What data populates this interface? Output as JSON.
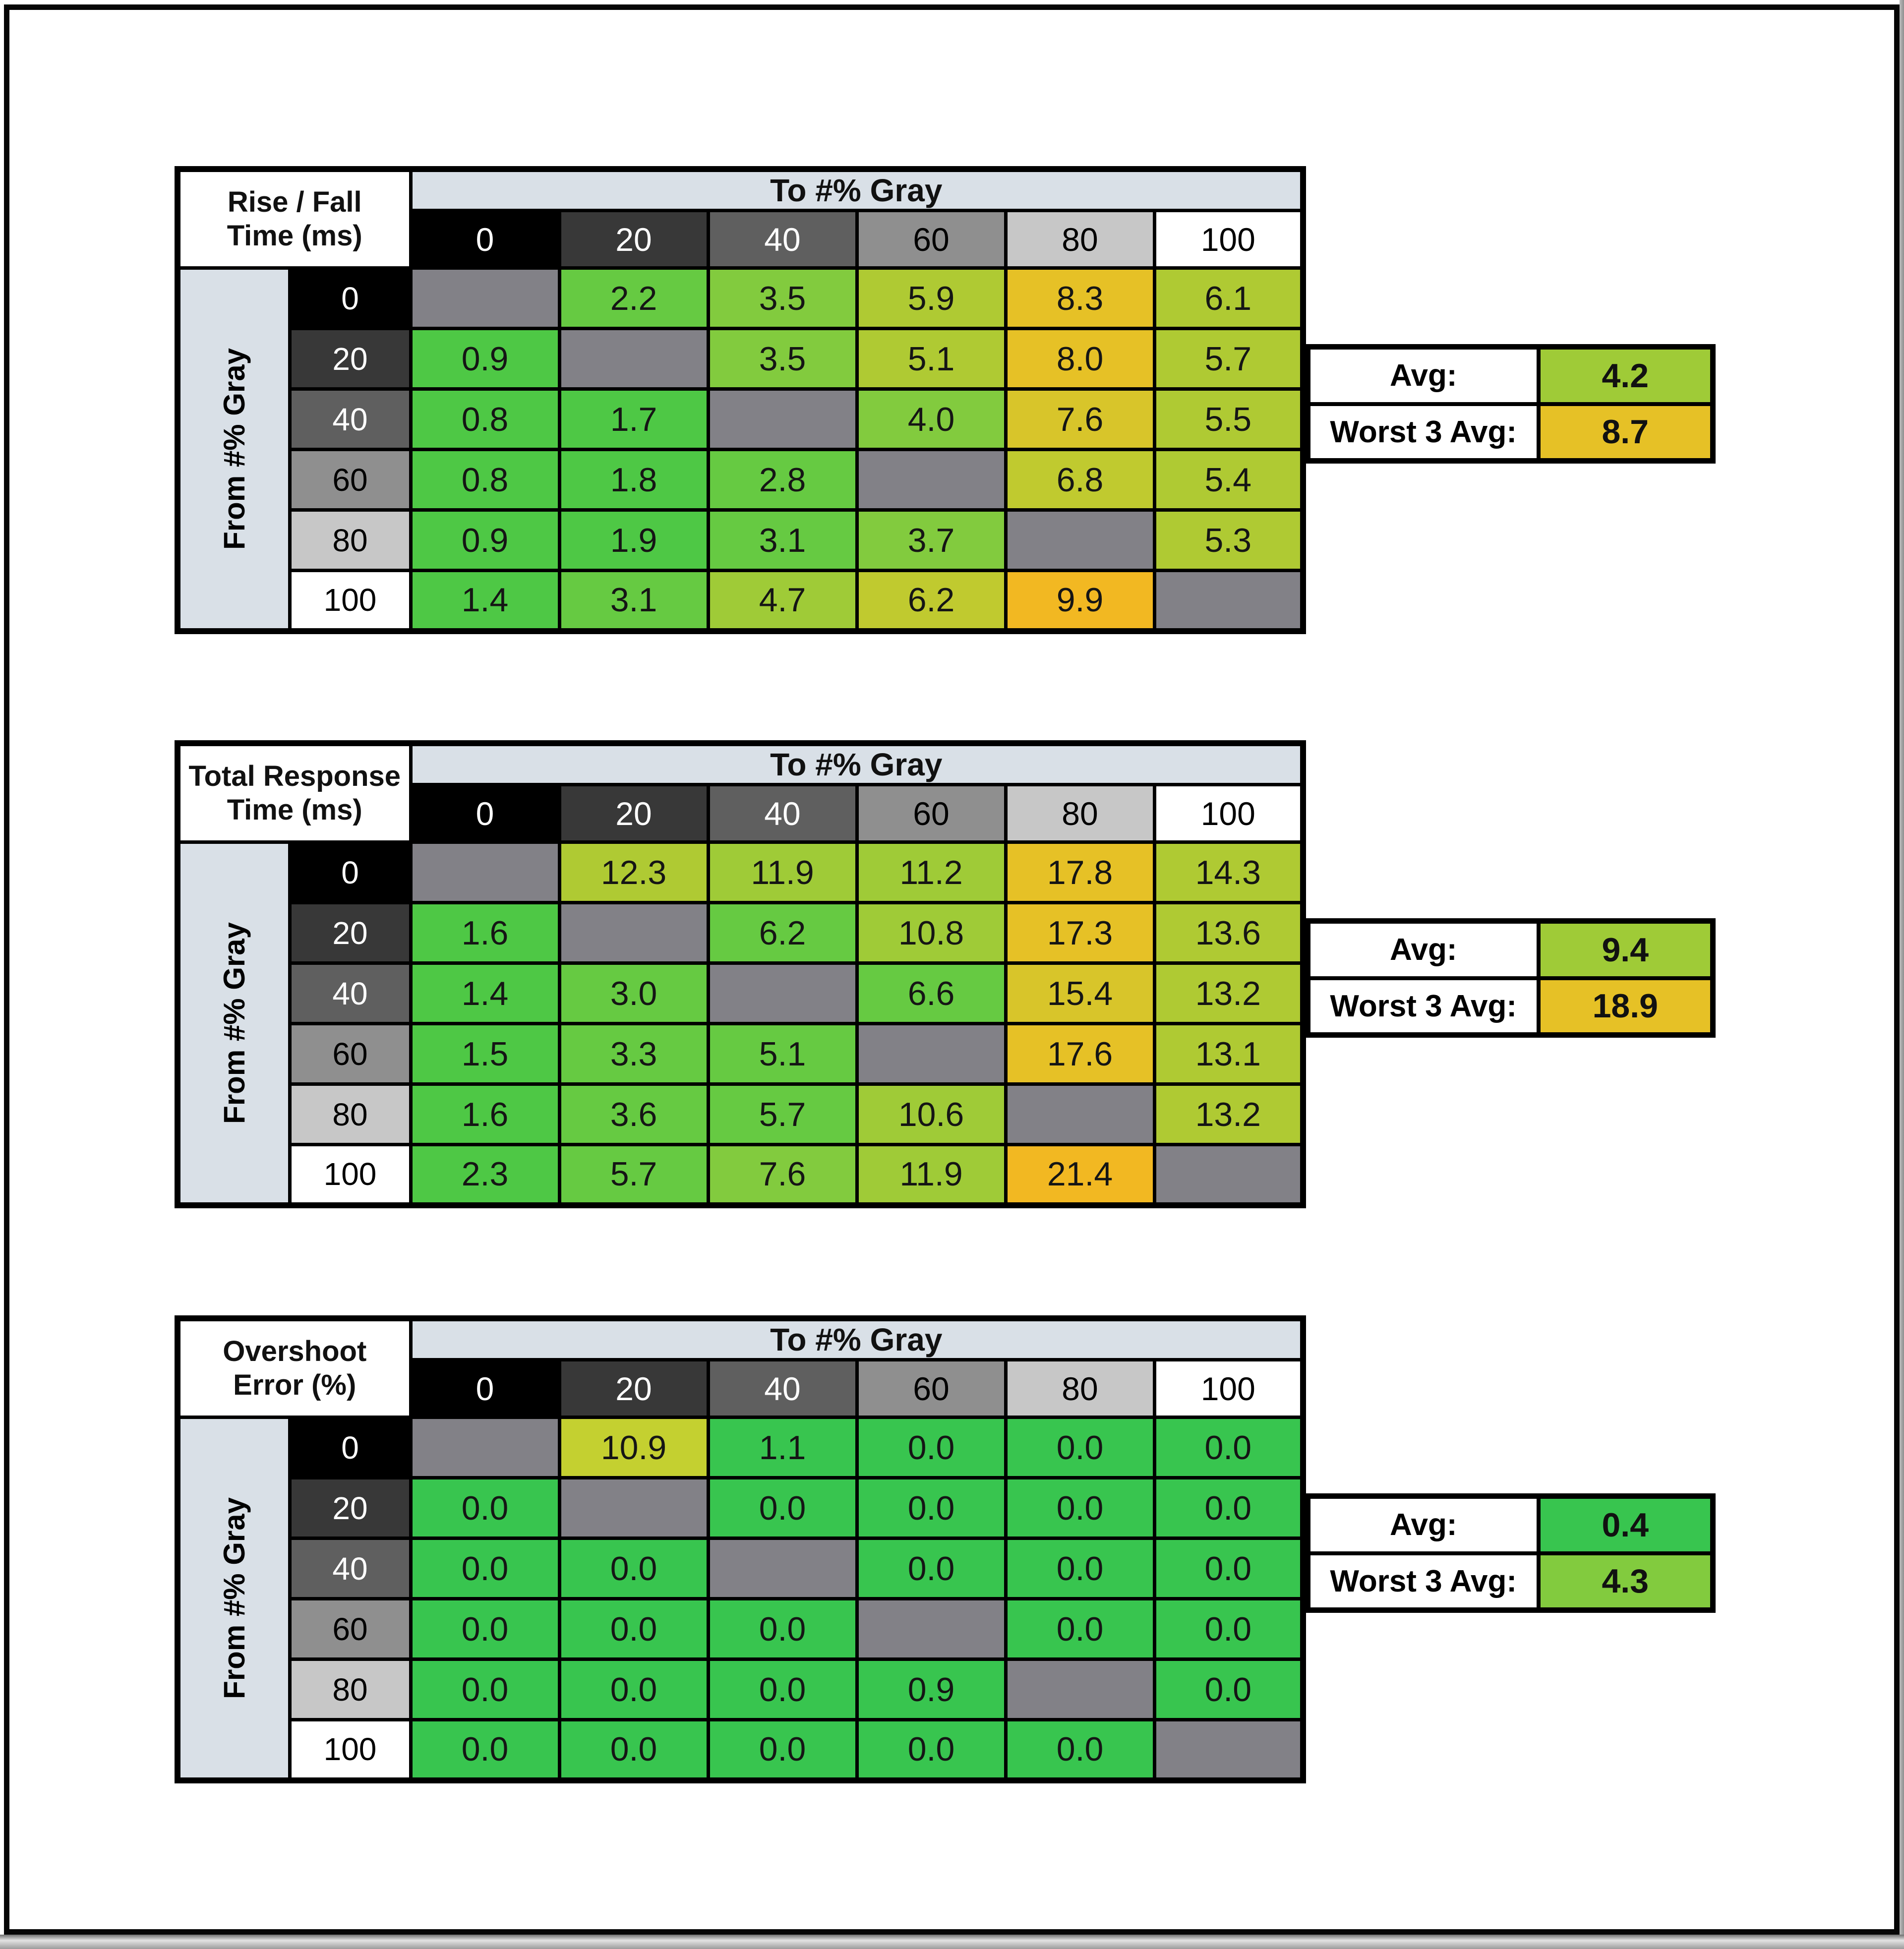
{
  "page_bg": "#FFFFFF",
  "frame_border_color": "#060606",
  "header_bg": "#D9E0E7",
  "col_group_header": "To #% Gray",
  "row_group_header": "From #% Gray",
  "palette": {
    "p0": "#38C54F",
    "p1": "#4EC845",
    "p2": "#66CA42",
    "p3": "#82CB3E",
    "p4": "#9FCB37",
    "p5": "#AFCA33",
    "p6": "#C0CA2F",
    "p6y": "#C4D030",
    "p7": "#D8C52A",
    "p8": "#E6C126",
    "p9": "#F2B822",
    "na": "#828187"
  },
  "levels": [
    {
      "label": "0",
      "bg": "#000000",
      "fg": "#FFFFFF"
    },
    {
      "label": "20",
      "bg": "#383838",
      "fg": "#FFFFFF"
    },
    {
      "label": "40",
      "bg": "#5F5F5F",
      "fg": "#FFFFFF"
    },
    {
      "label": "60",
      "bg": "#8F8F8F",
      "fg": "#000000"
    },
    {
      "label": "80",
      "bg": "#C7C7C7",
      "fg": "#000000"
    },
    {
      "label": "100",
      "bg": "#FFFFFF",
      "fg": "#000000"
    }
  ],
  "tables": [
    {
      "id": "rise-fall-time-table",
      "title_lines": [
        "Rise / Fall",
        "Time (ms)"
      ],
      "rows": [
        {
          "from": "0",
          "cells": [
            null,
            {
              "v": "2.2",
              "c": "p2"
            },
            {
              "v": "3.5",
              "c": "p3"
            },
            {
              "v": "5.9",
              "c": "p5"
            },
            {
              "v": "8.3",
              "c": "p8"
            },
            {
              "v": "6.1",
              "c": "p5"
            }
          ]
        },
        {
          "from": "20",
          "cells": [
            {
              "v": "0.9",
              "c": "p1"
            },
            null,
            {
              "v": "3.5",
              "c": "p3"
            },
            {
              "v": "5.1",
              "c": "p5"
            },
            {
              "v": "8.0",
              "c": "p8"
            },
            {
              "v": "5.7",
              "c": "p5"
            }
          ]
        },
        {
          "from": "40",
          "cells": [
            {
              "v": "0.8",
              "c": "p1"
            },
            {
              "v": "1.7",
              "c": "p1"
            },
            null,
            {
              "v": "4.0",
              "c": "p3"
            },
            {
              "v": "7.6",
              "c": "p7"
            },
            {
              "v": "5.5",
              "c": "p5"
            }
          ]
        },
        {
          "from": "60",
          "cells": [
            {
              "v": "0.8",
              "c": "p1"
            },
            {
              "v": "1.8",
              "c": "p1"
            },
            {
              "v": "2.8",
              "c": "p2"
            },
            null,
            {
              "v": "6.8",
              "c": "p6"
            },
            {
              "v": "5.4",
              "c": "p5"
            }
          ]
        },
        {
          "from": "80",
          "cells": [
            {
              "v": "0.9",
              "c": "p1"
            },
            {
              "v": "1.9",
              "c": "p1"
            },
            {
              "v": "3.1",
              "c": "p2"
            },
            {
              "v": "3.7",
              "c": "p3"
            },
            null,
            {
              "v": "5.3",
              "c": "p5"
            }
          ]
        },
        {
          "from": "100",
          "cells": [
            {
              "v": "1.4",
              "c": "p1"
            },
            {
              "v": "3.1",
              "c": "p2"
            },
            {
              "v": "4.7",
              "c": "p4"
            },
            {
              "v": "6.2",
              "c": "p6"
            },
            {
              "v": "9.9",
              "c": "p9"
            },
            null
          ]
        }
      ],
      "summary": {
        "avg_label": "Avg:",
        "avg_value": "4.2",
        "avg_color": "p4",
        "worst_label": "Worst 3 Avg:",
        "worst_value": "8.7",
        "worst_color": "p8"
      }
    },
    {
      "id": "total-response-time-table",
      "title_lines": [
        "Total Response",
        "Time (ms)"
      ],
      "rows": [
        {
          "from": "0",
          "cells": [
            null,
            {
              "v": "12.3",
              "c": "p5"
            },
            {
              "v": "11.9",
              "c": "p4"
            },
            {
              "v": "11.2",
              "c": "p4"
            },
            {
              "v": "17.8",
              "c": "p8"
            },
            {
              "v": "14.3",
              "c": "p5"
            }
          ]
        },
        {
          "from": "20",
          "cells": [
            {
              "v": "1.6",
              "c": "p1"
            },
            null,
            {
              "v": "6.2",
              "c": "p2"
            },
            {
              "v": "10.8",
              "c": "p4"
            },
            {
              "v": "17.3",
              "c": "p8"
            },
            {
              "v": "13.6",
              "c": "p5"
            }
          ]
        },
        {
          "from": "40",
          "cells": [
            {
              "v": "1.4",
              "c": "p1"
            },
            {
              "v": "3.0",
              "c": "p2"
            },
            null,
            {
              "v": "6.6",
              "c": "p2"
            },
            {
              "v": "15.4",
              "c": "p7"
            },
            {
              "v": "13.2",
              "c": "p5"
            }
          ]
        },
        {
          "from": "60",
          "cells": [
            {
              "v": "1.5",
              "c": "p1"
            },
            {
              "v": "3.3",
              "c": "p2"
            },
            {
              "v": "5.1",
              "c": "p2"
            },
            null,
            {
              "v": "17.6",
              "c": "p8"
            },
            {
              "v": "13.1",
              "c": "p5"
            }
          ]
        },
        {
          "from": "80",
          "cells": [
            {
              "v": "1.6",
              "c": "p1"
            },
            {
              "v": "3.6",
              "c": "p2"
            },
            {
              "v": "5.7",
              "c": "p2"
            },
            {
              "v": "10.6",
              "c": "p4"
            },
            null,
            {
              "v": "13.2",
              "c": "p5"
            }
          ]
        },
        {
          "from": "100",
          "cells": [
            {
              "v": "2.3",
              "c": "p1"
            },
            {
              "v": "5.7",
              "c": "p2"
            },
            {
              "v": "7.6",
              "c": "p3"
            },
            {
              "v": "11.9",
              "c": "p4"
            },
            {
              "v": "21.4",
              "c": "p9"
            },
            null
          ]
        }
      ],
      "summary": {
        "avg_label": "Avg:",
        "avg_value": "9.4",
        "avg_color": "p4",
        "worst_label": "Worst 3 Avg:",
        "worst_value": "18.9",
        "worst_color": "p8"
      }
    },
    {
      "id": "overshoot-error-table",
      "title_lines": [
        "Overshoot",
        "Error (%)"
      ],
      "rows": [
        {
          "from": "0",
          "cells": [
            null,
            {
              "v": "10.9",
              "c": "p6y"
            },
            {
              "v": "1.1",
              "c": "p0"
            },
            {
              "v": "0.0",
              "c": "p0"
            },
            {
              "v": "0.0",
              "c": "p0"
            },
            {
              "v": "0.0",
              "c": "p0"
            }
          ]
        },
        {
          "from": "20",
          "cells": [
            {
              "v": "0.0",
              "c": "p0"
            },
            null,
            {
              "v": "0.0",
              "c": "p0"
            },
            {
              "v": "0.0",
              "c": "p0"
            },
            {
              "v": "0.0",
              "c": "p0"
            },
            {
              "v": "0.0",
              "c": "p0"
            }
          ]
        },
        {
          "from": "40",
          "cells": [
            {
              "v": "0.0",
              "c": "p0"
            },
            {
              "v": "0.0",
              "c": "p0"
            },
            null,
            {
              "v": "0.0",
              "c": "p0"
            },
            {
              "v": "0.0",
              "c": "p0"
            },
            {
              "v": "0.0",
              "c": "p0"
            }
          ]
        },
        {
          "from": "60",
          "cells": [
            {
              "v": "0.0",
              "c": "p0"
            },
            {
              "v": "0.0",
              "c": "p0"
            },
            {
              "v": "0.0",
              "c": "p0"
            },
            null,
            {
              "v": "0.0",
              "c": "p0"
            },
            {
              "v": "0.0",
              "c": "p0"
            }
          ]
        },
        {
          "from": "80",
          "cells": [
            {
              "v": "0.0",
              "c": "p0"
            },
            {
              "v": "0.0",
              "c": "p0"
            },
            {
              "v": "0.0",
              "c": "p0"
            },
            {
              "v": "0.9",
              "c": "p0"
            },
            null,
            {
              "v": "0.0",
              "c": "p0"
            }
          ]
        },
        {
          "from": "100",
          "cells": [
            {
              "v": "0.0",
              "c": "p0"
            },
            {
              "v": "0.0",
              "c": "p0"
            },
            {
              "v": "0.0",
              "c": "p0"
            },
            {
              "v": "0.0",
              "c": "p0"
            },
            {
              "v": "0.0",
              "c": "p0"
            },
            null
          ]
        }
      ],
      "summary": {
        "avg_label": "Avg:",
        "avg_value": "0.4",
        "avg_color": "p0",
        "worst_label": "Worst 3 Avg:",
        "worst_value": "4.3",
        "worst_color": "p3"
      }
    }
  ],
  "chart_data": [
    {
      "type": "heatmap",
      "title": "Rise / Fall Time (ms)",
      "xlabel": "To #% Gray",
      "ylabel": "From #% Gray",
      "x": [
        0,
        20,
        40,
        60,
        80,
        100
      ],
      "y": [
        0,
        20,
        40,
        60,
        80,
        100
      ],
      "values": [
        [
          null,
          2.2,
          3.5,
          5.9,
          8.3,
          6.1
        ],
        [
          0.9,
          null,
          3.5,
          5.1,
          8.0,
          5.7
        ],
        [
          0.8,
          1.7,
          null,
          4.0,
          7.6,
          5.5
        ],
        [
          0.8,
          1.8,
          2.8,
          null,
          6.8,
          5.4
        ],
        [
          0.9,
          1.9,
          3.1,
          3.7,
          null,
          5.3
        ],
        [
          1.4,
          3.1,
          4.7,
          6.2,
          9.9,
          null
        ]
      ],
      "avg": 4.2,
      "worst_3_avg": 8.7,
      "colorscale": "green-low to gold-high, gray diagonal"
    },
    {
      "type": "heatmap",
      "title": "Total Response Time (ms)",
      "xlabel": "To #% Gray",
      "ylabel": "From #% Gray",
      "x": [
        0,
        20,
        40,
        60,
        80,
        100
      ],
      "y": [
        0,
        20,
        40,
        60,
        80,
        100
      ],
      "values": [
        [
          null,
          12.3,
          11.9,
          11.2,
          17.8,
          14.3
        ],
        [
          1.6,
          null,
          6.2,
          10.8,
          17.3,
          13.6
        ],
        [
          1.4,
          3.0,
          null,
          6.6,
          15.4,
          13.2
        ],
        [
          1.5,
          3.3,
          5.1,
          null,
          17.6,
          13.1
        ],
        [
          1.6,
          3.6,
          5.7,
          10.6,
          null,
          13.2
        ],
        [
          2.3,
          5.7,
          7.6,
          11.9,
          21.4,
          null
        ]
      ],
      "avg": 9.4,
      "worst_3_avg": 18.9,
      "colorscale": "green-low to gold-high, gray diagonal"
    },
    {
      "type": "heatmap",
      "title": "Overshoot Error (%)",
      "xlabel": "To #% Gray",
      "ylabel": "From #% Gray",
      "x": [
        0,
        20,
        40,
        60,
        80,
        100
      ],
      "y": [
        0,
        20,
        40,
        60,
        80,
        100
      ],
      "values": [
        [
          null,
          10.9,
          1.1,
          0.0,
          0.0,
          0.0
        ],
        [
          0.0,
          null,
          0.0,
          0.0,
          0.0,
          0.0
        ],
        [
          0.0,
          0.0,
          null,
          0.0,
          0.0,
          0.0
        ],
        [
          0.0,
          0.0,
          0.0,
          null,
          0.0,
          0.0
        ],
        [
          0.0,
          0.0,
          0.0,
          0.9,
          null,
          0.0
        ],
        [
          0.0,
          0.0,
          0.0,
          0.0,
          0.0,
          null
        ]
      ],
      "avg": 0.4,
      "worst_3_avg": 4.3,
      "colorscale": "green-low to gold-high, gray diagonal"
    }
  ]
}
